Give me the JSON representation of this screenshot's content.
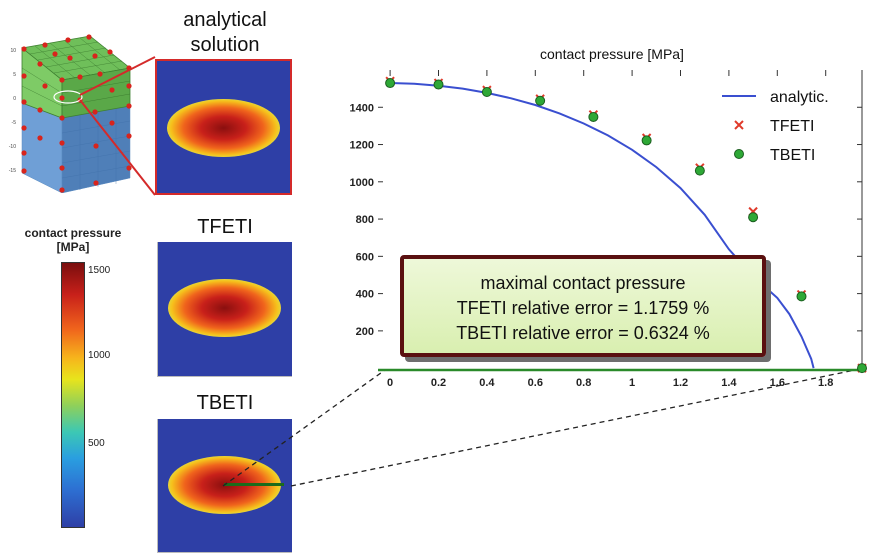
{
  "panels": {
    "analytical_title": "analytical\nsolution",
    "tfeti_title": "TFETI",
    "tbeti_title": "TBETI"
  },
  "colorbar": {
    "title_line1": "contact pressure",
    "title_line2": "[MPa]",
    "ticks": [
      "1500",
      "1000",
      "500"
    ]
  },
  "mesh": {
    "axis_ticks": [
      "10",
      "5",
      "0",
      "-5",
      "-10",
      "-15"
    ]
  },
  "callout": {
    "line1": "maximal contact pressure",
    "line2": "TFETI relative error = 1.1759 %",
    "line3": "TBETI relative error = 0.6324 %"
  },
  "chart_data": {
    "type": "line",
    "title": "contact pressure [MPa]",
    "xlabel": "",
    "ylabel": "",
    "xlim": [
      -0.05,
      1.95
    ],
    "ylim": [
      -10,
      1600
    ],
    "x_ticks": [
      "0",
      "0.2",
      "0.4",
      "0.6",
      "0.8",
      "1",
      "1.2",
      "1.4",
      "1.6",
      "1.8"
    ],
    "y_ticks": [
      "200",
      "400",
      "600",
      "800",
      "1000",
      "1200",
      "1400"
    ],
    "x_tick_values": [
      0,
      0.2,
      0.4,
      0.6,
      0.8,
      1.0,
      1.2,
      1.4,
      1.6,
      1.8
    ],
    "y_tick_values": [
      200,
      400,
      600,
      800,
      1000,
      1200,
      1400
    ],
    "legend_position": "top-right",
    "grid": false,
    "series": [
      {
        "name": "analytic.",
        "color": "#3a4fd0",
        "marker": "line",
        "x": [
          0,
          0.1,
          0.2,
          0.3,
          0.4,
          0.5,
          0.6,
          0.7,
          0.8,
          0.9,
          1.0,
          1.1,
          1.2,
          1.3,
          1.4,
          1.5,
          1.6,
          1.65,
          1.7,
          1.72,
          1.74,
          1.75
        ],
        "values": [
          1530,
          1526,
          1516,
          1500,
          1477,
          1448,
          1412,
          1367,
          1313,
          1249,
          1172,
          1079,
          966,
          823,
          638,
          493,
          377,
          290,
          170,
          110,
          50,
          0
        ]
      },
      {
        "name": "TFETI",
        "color": "#e03a2a",
        "marker": "x",
        "x": [
          0,
          0.2,
          0.4,
          0.62,
          0.84,
          1.06,
          1.28,
          1.5,
          1.7,
          1.95
        ],
        "values": [
          1540,
          1530,
          1492,
          1445,
          1360,
          1235,
          1075,
          840,
          395,
          0
        ]
      },
      {
        "name": "TBETI",
        "color": "#2ea836",
        "marker": "o",
        "x": [
          0,
          0.2,
          0.4,
          0.62,
          0.84,
          1.06,
          1.28,
          1.5,
          1.7,
          1.95
        ],
        "values": [
          1530,
          1522,
          1482,
          1435,
          1348,
          1222,
          1060,
          810,
          385,
          0
        ]
      }
    ]
  }
}
